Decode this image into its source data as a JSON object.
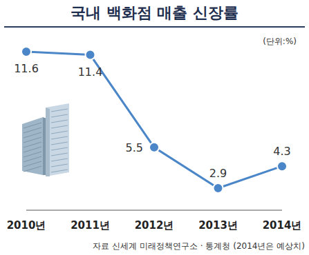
{
  "chart_data": {
    "type": "line",
    "title": "국내 백화점 매출 신장률",
    "unit": "(단위:%)",
    "categories": [
      "2010년",
      "2011년",
      "2012년",
      "2013년",
      "2014년"
    ],
    "values": [
      11.6,
      11.4,
      5.5,
      2.9,
      4.3
    ],
    "color": "#4a86c8",
    "data_labels": true,
    "grid": false,
    "tick_labels": "x",
    "source": "자료 신세계 미래정책연구소 · 통계청 (2014년은 예상치)"
  }
}
